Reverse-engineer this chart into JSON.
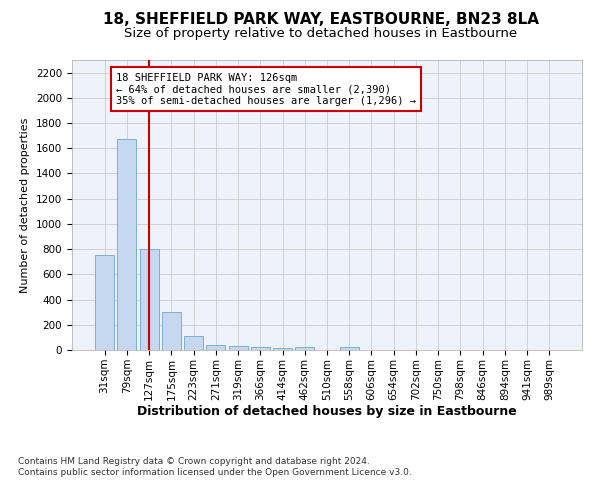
{
  "title": "18, SHEFFIELD PARK WAY, EASTBOURNE, BN23 8LA",
  "subtitle": "Size of property relative to detached houses in Eastbourne",
  "xlabel": "Distribution of detached houses by size in Eastbourne",
  "ylabel": "Number of detached properties",
  "categories": [
    "31sqm",
    "79sqm",
    "127sqm",
    "175sqm",
    "223sqm",
    "271sqm",
    "319sqm",
    "366sqm",
    "414sqm",
    "462sqm",
    "510sqm",
    "558sqm",
    "606sqm",
    "654sqm",
    "702sqm",
    "750sqm",
    "798sqm",
    "846sqm",
    "894sqm",
    "941sqm",
    "989sqm"
  ],
  "values": [
    750,
    1670,
    800,
    300,
    110,
    40,
    30,
    20,
    15,
    20,
    0,
    20,
    0,
    0,
    0,
    0,
    0,
    0,
    0,
    0,
    0
  ],
  "bar_color": "#c5d8f0",
  "bar_edge_color": "#7bafd4",
  "red_line_index": 2,
  "annotation_text": "18 SHEFFIELD PARK WAY: 126sqm\n← 64% of detached houses are smaller (2,390)\n35% of semi-detached houses are larger (1,296) →",
  "annotation_box_color": "#ffffff",
  "annotation_box_edge_color": "#cc0000",
  "ylim": [
    0,
    2300
  ],
  "yticks": [
    0,
    200,
    400,
    600,
    800,
    1000,
    1200,
    1400,
    1600,
    1800,
    2000,
    2200
  ],
  "grid_color": "#cccccc",
  "background_color": "#eef3fb",
  "footer_text": "Contains HM Land Registry data © Crown copyright and database right 2024.\nContains public sector information licensed under the Open Government Licence v3.0.",
  "title_fontsize": 11,
  "subtitle_fontsize": 9.5,
  "xlabel_fontsize": 9,
  "ylabel_fontsize": 8,
  "tick_fontsize": 7.5,
  "annotation_fontsize": 7.5,
  "footer_fontsize": 6.5
}
